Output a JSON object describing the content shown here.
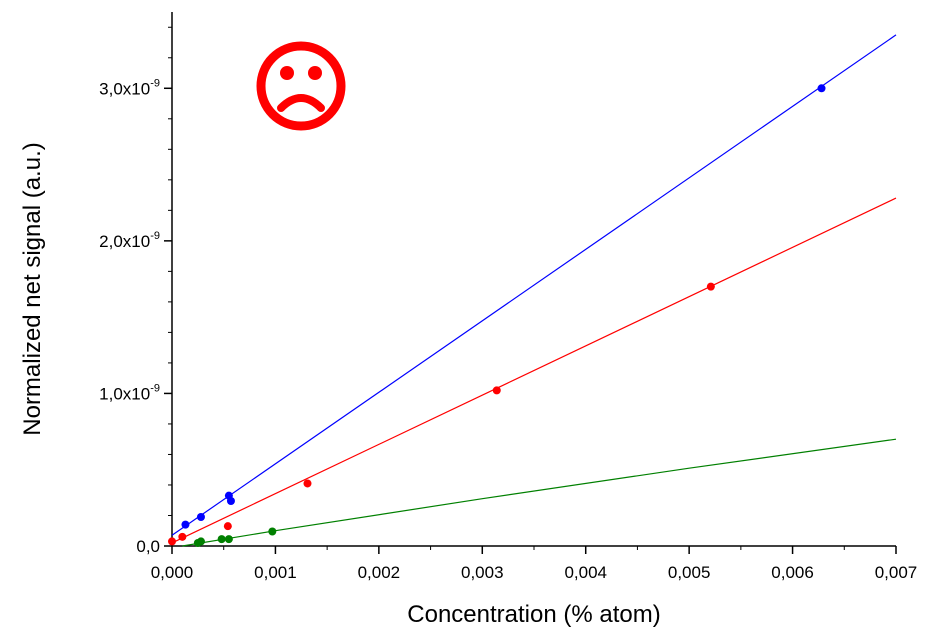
{
  "chart_data": {
    "type": "scatter",
    "title": "",
    "xlabel": "Concentration (% atom)",
    "ylabel": "Normalized net signal (a.u.)",
    "xlim": [
      0,
      0.007
    ],
    "ylim": [
      0,
      3.5e-09
    ],
    "x_ticks": [
      0,
      0.001,
      0.002,
      0.003,
      0.004,
      0.005,
      0.006,
      0.007
    ],
    "x_tick_labels": [
      "0,000",
      "0,001",
      "0,002",
      "0,003",
      "0,004",
      "0,005",
      "0,006",
      "0,007"
    ],
    "y_ticks": [
      0,
      1e-09,
      2e-09,
      3e-09
    ],
    "y_tick_labels": [
      {
        "mantissa": "0,0",
        "exponent": ""
      },
      {
        "mantissa": "1,0x10",
        "exponent": "-9"
      },
      {
        "mantissa": "2,0x10",
        "exponent": "-9"
      },
      {
        "mantissa": "3,0x10",
        "exponent": "-9"
      }
    ],
    "grid": false,
    "legend": "none",
    "annotation": {
      "symbol": "☹",
      "color": "#ff0000",
      "placement": "top-left"
    },
    "series": [
      {
        "color": "#0000ff",
        "points": [
          {
            "x": 0.00013,
            "y": 1.4e-10
          },
          {
            "x": 0.00028,
            "y": 1.9e-10
          },
          {
            "x": 0.00055,
            "y": 3.3e-10
          },
          {
            "x": 0.00057,
            "y": 2.95e-10
          },
          {
            "x": 0.00628,
            "y": 3e-09
          }
        ],
        "fit": {
          "x": [
            0,
            0.007
          ],
          "y": [
            7e-11,
            3.35e-09
          ]
        }
      },
      {
        "color": "#ff0000",
        "points": [
          {
            "x": 0.0,
            "y": 3e-11
          },
          {
            "x": 0.0001,
            "y": 6e-11
          },
          {
            "x": 0.00054,
            "y": 1.3e-10
          },
          {
            "x": 0.00131,
            "y": 4.1e-10
          },
          {
            "x": 0.00314,
            "y": 1.02e-09
          },
          {
            "x": 0.00521,
            "y": 1.7e-09
          }
        ],
        "fit": {
          "x": [
            0,
            0.007
          ],
          "y": [
            2e-11,
            2.28e-09
          ]
        }
      },
      {
        "color": "#008000",
        "points": [
          {
            "x": 0.00025,
            "y": 2e-11
          },
          {
            "x": 0.00028,
            "y": 3e-11
          },
          {
            "x": 0.00048,
            "y": 4.5e-11
          },
          {
            "x": 0.00055,
            "y": 4.5e-11
          },
          {
            "x": 0.00097,
            "y": 9.5e-11
          }
        ],
        "fit": {
          "x": [
            0.0001,
            0.001,
            0.003,
            0.005,
            0.007
          ],
          "y": [
            0,
            1e-10,
            3.1e-10,
            5.1e-10,
            7e-10
          ]
        }
      }
    ]
  }
}
